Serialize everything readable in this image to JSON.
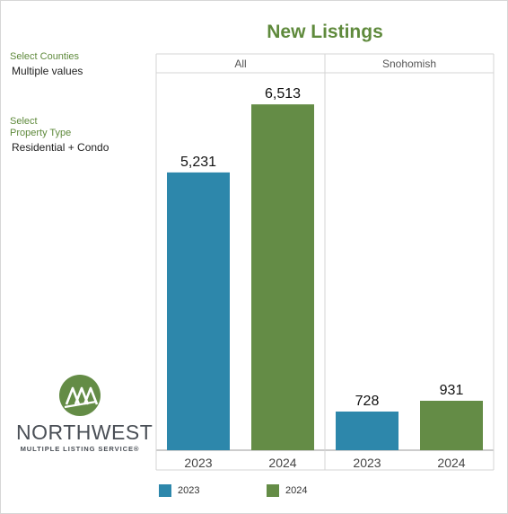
{
  "filters": {
    "counties_label": "Select Counties",
    "counties_value": "Multiple values",
    "property_label_line1": "Select",
    "property_label_line2": "Property Type",
    "property_value": "Residential + Condo"
  },
  "logo": {
    "name": "NORTHWEST",
    "subtitle": "MULTIPLE LISTING SERVICE®",
    "icon": "trees-icon"
  },
  "colors": {
    "series_2023": "#2d87ab",
    "series_2024": "#648c46",
    "title": "#5f8a3c"
  },
  "chart_data": {
    "type": "bar",
    "title": "New Listings",
    "panels": [
      {
        "name": "All",
        "categories": [
          "2023",
          "2024"
        ],
        "values": [
          5231,
          6513
        ],
        "labels": [
          "5,231",
          "6,513"
        ]
      },
      {
        "name": "Snohomish",
        "categories": [
          "2023",
          "2024"
        ],
        "values": [
          728,
          931
        ],
        "labels": [
          "728",
          "931"
        ]
      }
    ],
    "legend": [
      {
        "name": "2023",
        "color": "#2d87ab"
      },
      {
        "name": "2024",
        "color": "#648c46"
      }
    ],
    "legend_position": "bottom",
    "ylim": [
      0,
      6600
    ],
    "grid": false
  }
}
